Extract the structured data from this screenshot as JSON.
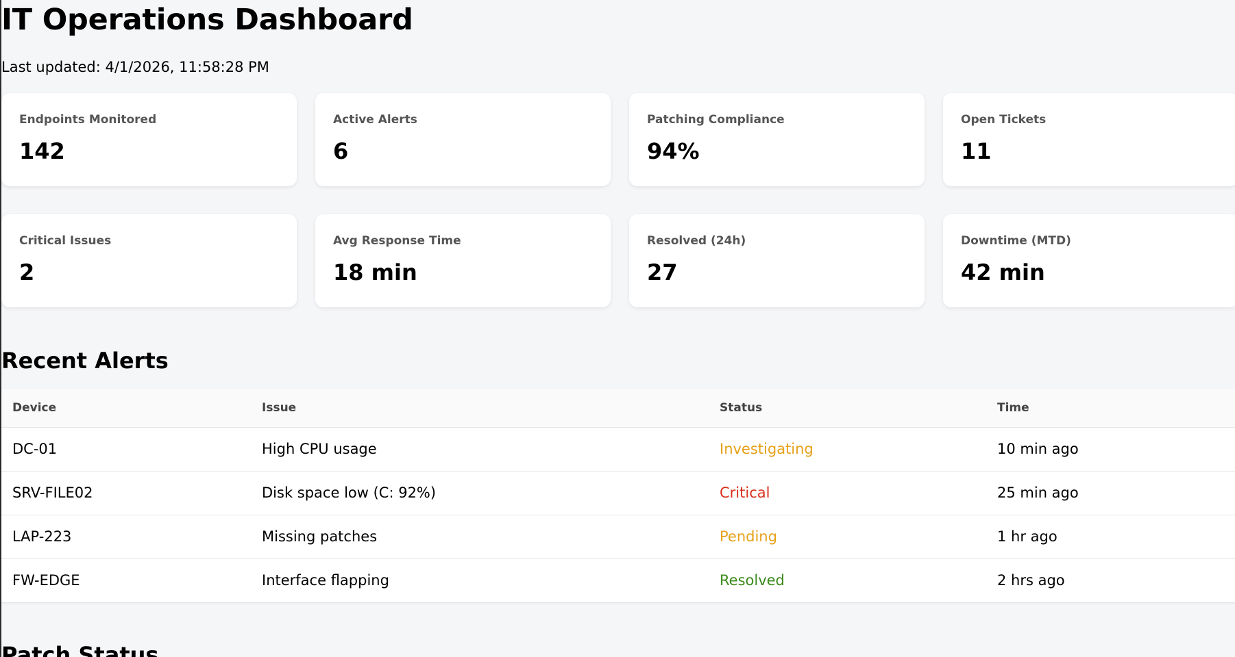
{
  "header": {
    "title": "IT Operations Dashboard",
    "last_updated": "Last updated: 4/1/2026, 11:58:28 PM"
  },
  "cards": [
    {
      "label": "Endpoints Monitored",
      "value": "142"
    },
    {
      "label": "Active Alerts",
      "value": "6"
    },
    {
      "label": "Patching Compliance",
      "value": "94%"
    },
    {
      "label": "Open Tickets",
      "value": "11"
    },
    {
      "label": "Critical Issues",
      "value": "2"
    },
    {
      "label": "Avg Response Time",
      "value": "18 min"
    },
    {
      "label": "Resolved (24h)",
      "value": "27"
    },
    {
      "label": "Downtime (MTD)",
      "value": "42 min"
    }
  ],
  "recent_alerts": {
    "title": "Recent Alerts",
    "columns": [
      "Device",
      "Issue",
      "Status",
      "Time"
    ],
    "rows": [
      {
        "device": "DC-01",
        "issue": "High CPU usage",
        "status": "Investigating",
        "time": "10 min ago",
        "status_color": "#e6a117"
      },
      {
        "device": "SRV-FILE02",
        "issue": "Disk space low (C: 92%)",
        "status": "Critical",
        "time": "25 min ago",
        "status_color": "#d9301c"
      },
      {
        "device": "LAP-223",
        "issue": "Missing patches",
        "status": "Pending",
        "time": "1 hr ago",
        "status_color": "#e6a117"
      },
      {
        "device": "FW-EDGE",
        "issue": "Interface flapping",
        "status": "Resolved",
        "time": "2 hrs ago",
        "status_color": "#3a8a1a"
      }
    ]
  },
  "patch_status": {
    "title": "Patch Status"
  }
}
